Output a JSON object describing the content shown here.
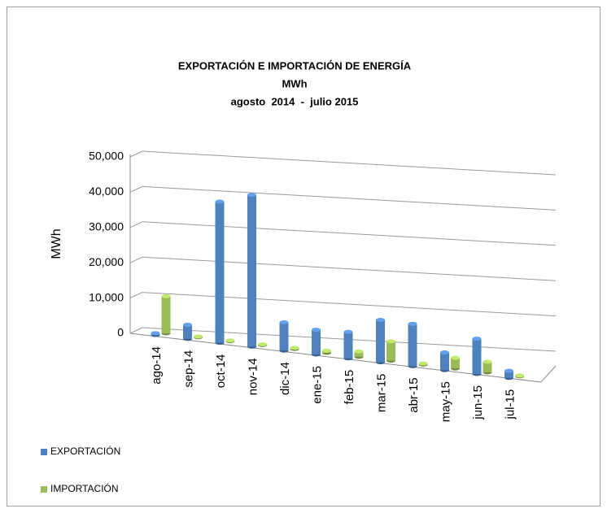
{
  "chart_data": {
    "type": "bar",
    "title": "EXPORTACIÓN E IMPORTACIÓN DE ENERGÍA",
    "subtitle": [
      "MWh",
      "agosto  2014  -  julio 2015"
    ],
    "y_label": "MWh",
    "categories": [
      "ago-14",
      "sep-14",
      "oct-14",
      "nov-14",
      "dic-14",
      "ene-15",
      "feb-15",
      "mar-15",
      "abr-15",
      "may-15",
      "jun-15",
      "jul-15"
    ],
    "series": [
      {
        "name": "EXPORTACIÓN",
        "color": "#4f81bd",
        "values": [
          500,
          4000,
          40000,
          43000,
          8000,
          7000,
          7500,
          12000,
          12000,
          5000,
          10000,
          2000
        ]
      },
      {
        "name": "IMPORTACIÓN",
        "color": "#9bbb59",
        "values": [
          10500,
          200,
          200,
          200,
          300,
          600,
          1500,
          5500,
          300,
          3000,
          3000,
          200
        ]
      }
    ],
    "ylim": [
      0,
      50000
    ],
    "yticks": [
      0,
      {
        "value": 10000,
        "label": "10,000"
      },
      {
        "value": 20000,
        "label": "20,000"
      },
      {
        "value": 30000,
        "label": "30,000"
      },
      {
        "value": 40000,
        "label": "40,000"
      },
      {
        "value": 50000,
        "label": "50,000"
      }
    ],
    "grid": true,
    "legend": "bottom-left"
  }
}
